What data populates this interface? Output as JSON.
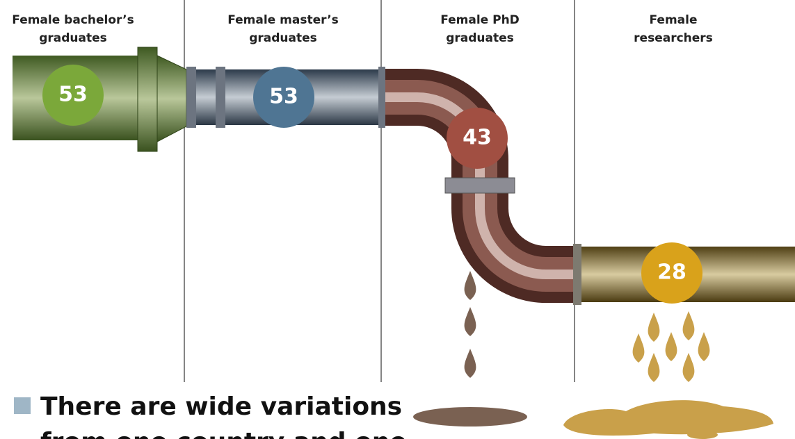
{
  "stages": [
    {
      "label_lines": [
        "Female bachelor’s",
        "graduates"
      ],
      "value": "53"
    },
    {
      "label_lines": [
        "Female master’s",
        "graduates"
      ],
      "value": "53"
    },
    {
      "label_lines": [
        "Female PhD",
        "graduates"
      ],
      "value": "43"
    },
    {
      "label_lines": [
        "Female",
        "researchers"
      ],
      "value": "28"
    }
  ],
  "note": {
    "lines": [
      "There are wide variations",
      "from one country and one"
    ]
  }
}
